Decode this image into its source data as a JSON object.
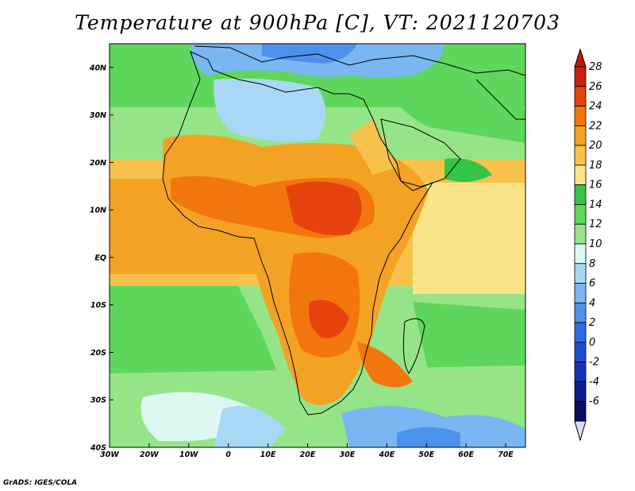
{
  "title": "Temperature at 900hPa [C], VT: 2021120703",
  "credit": "GrADS: IGES/COLA",
  "map": {
    "lon_range": [
      -30,
      75
    ],
    "lat_range": [
      -40,
      45
    ],
    "x_ticks": [
      {
        "lon": -30,
        "label": "30W"
      },
      {
        "lon": -20,
        "label": "20W"
      },
      {
        "lon": -10,
        "label": "10W"
      },
      {
        "lon": 0,
        "label": "0"
      },
      {
        "lon": 10,
        "label": "10E"
      },
      {
        "lon": 20,
        "label": "20E"
      },
      {
        "lon": 30,
        "label": "30E"
      },
      {
        "lon": 40,
        "label": "40E"
      },
      {
        "lon": 50,
        "label": "50E"
      },
      {
        "lon": 60,
        "label": "60E"
      },
      {
        "lon": 70,
        "label": "70E"
      }
    ],
    "y_ticks": [
      {
        "lat": 40,
        "label": "40N"
      },
      {
        "lat": 30,
        "label": "30N"
      },
      {
        "lat": 20,
        "label": "20N"
      },
      {
        "lat": 10,
        "label": "10N"
      },
      {
        "lat": 0,
        "label": "EQ"
      },
      {
        "lat": -10,
        "label": "10S"
      },
      {
        "lat": -20,
        "label": "20S"
      },
      {
        "lat": -30,
        "label": "30S"
      },
      {
        "lat": -40,
        "label": "40S"
      }
    ]
  },
  "colorbar": {
    "levels": [
      {
        "value": "28",
        "color": "#c8220e"
      },
      {
        "value": "26",
        "color": "#e6420e"
      },
      {
        "value": "24",
        "color": "#f2760e"
      },
      {
        "value": "22",
        "color": "#f4a224"
      },
      {
        "value": "20",
        "color": "#f7c24c"
      },
      {
        "value": "18",
        "color": "#fbe488"
      },
      {
        "value": "16",
        "color": "#36c446"
      },
      {
        "value": "14",
        "color": "#5ed65c"
      },
      {
        "value": "12",
        "color": "#96e488"
      },
      {
        "value": "10",
        "color": "#dcf8f0"
      },
      {
        "value": "8",
        "color": "#a8d8f6"
      },
      {
        "value": "6",
        "color": "#7ab6f2"
      },
      {
        "value": "4",
        "color": "#4c92ea"
      },
      {
        "value": "2",
        "color": "#2e6ee0"
      },
      {
        "value": "0",
        "color": "#1c4ed2"
      },
      {
        "value": "-2",
        "color": "#1430b4"
      },
      {
        "value": "-4",
        "color": "#0c1c8c"
      },
      {
        "value": "-6",
        "color": "#080c60"
      }
    ],
    "over_color": "#c0170a",
    "under_color": "#dcdcf8"
  }
}
